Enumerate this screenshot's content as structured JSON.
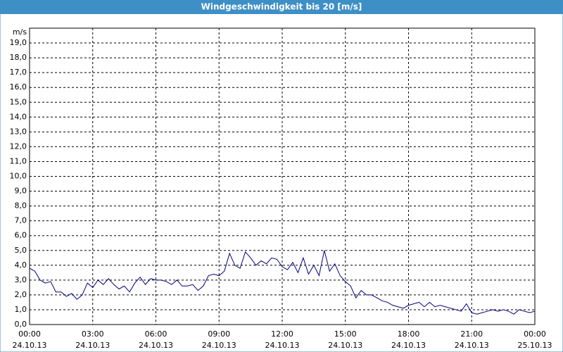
{
  "chart_data": {
    "type": "line",
    "title": "Windgeschwindigkeit bis 20 [m/s]",
    "y_label": "m/s",
    "xlim": [
      0,
      24
    ],
    "xticks": [
      {
        "value": 0,
        "label": "00:00",
        "sublabel": "24.10.13"
      },
      {
        "value": 3,
        "label": "03:00",
        "sublabel": "24.10.13"
      },
      {
        "value": 6,
        "label": "06:00",
        "sublabel": "24.10.13"
      },
      {
        "value": 9,
        "label": "09:00",
        "sublabel": "24.10.13"
      },
      {
        "value": 12,
        "label": "12:00",
        "sublabel": "24.10.13"
      },
      {
        "value": 15,
        "label": "15:00",
        "sublabel": "24.10.13"
      },
      {
        "value": 18,
        "label": "18:00",
        "sublabel": "24.10.13"
      },
      {
        "value": 21,
        "label": "21:00",
        "sublabel": "24.10.13"
      },
      {
        "value": 24,
        "label": "00:00",
        "sublabel": "25.10.13"
      }
    ],
    "ylim": [
      0,
      20
    ],
    "yticks": [
      {
        "value": 0,
        "label": "0,0"
      },
      {
        "value": 1,
        "label": "1,0"
      },
      {
        "value": 2,
        "label": "2,0"
      },
      {
        "value": 3,
        "label": "3,0"
      },
      {
        "value": 4,
        "label": "4,0"
      },
      {
        "value": 5,
        "label": "5,0"
      },
      {
        "value": 6,
        "label": "6,0"
      },
      {
        "value": 7,
        "label": "7,0"
      },
      {
        "value": 8,
        "label": "8,0"
      },
      {
        "value": 9,
        "label": "9,0"
      },
      {
        "value": 10,
        "label": "10,0"
      },
      {
        "value": 11,
        "label": "11,0"
      },
      {
        "value": 12,
        "label": "12,0"
      },
      {
        "value": 13,
        "label": "13,0"
      },
      {
        "value": 14,
        "label": "14,0"
      },
      {
        "value": 15,
        "label": "15,0"
      },
      {
        "value": 16,
        "label": "16,0"
      },
      {
        "value": 17,
        "label": "17,0"
      },
      {
        "value": 18,
        "label": "18,0"
      },
      {
        "value": 19,
        "label": "19,0"
      }
    ],
    "grid": true,
    "x": [
      0,
      0.25,
      0.5,
      0.75,
      1,
      1.25,
      1.5,
      1.75,
      2,
      2.25,
      2.5,
      2.75,
      3,
      3.25,
      3.5,
      3.75,
      4,
      4.25,
      4.5,
      4.75,
      5,
      5.25,
      5.5,
      5.75,
      6,
      6.25,
      6.5,
      6.75,
      7,
      7.25,
      7.5,
      7.75,
      8,
      8.25,
      8.5,
      8.75,
      9,
      9.25,
      9.5,
      9.75,
      10,
      10.25,
      10.5,
      10.75,
      11,
      11.25,
      11.5,
      11.75,
      12,
      12.25,
      12.5,
      12.75,
      13,
      13.25,
      13.5,
      13.75,
      14,
      14.25,
      14.5,
      14.75,
      15,
      15.25,
      15.5,
      15.75,
      16,
      16.25,
      16.5,
      16.75,
      17,
      17.25,
      17.5,
      17.75,
      18,
      18.25,
      18.5,
      18.75,
      19,
      19.25,
      19.5,
      19.75,
      20,
      20.25,
      20.5,
      20.75,
      21,
      21.25,
      21.5,
      21.75,
      22,
      22.25,
      22.5,
      22.75,
      23,
      23.25,
      23.5,
      23.75,
      24
    ],
    "series": [
      {
        "color": "#000080",
        "values": [
          3.8,
          3.6,
          3.0,
          2.8,
          2.9,
          2.2,
          2.2,
          1.9,
          2.1,
          1.7,
          2.0,
          2.8,
          2.5,
          3.0,
          2.7,
          3.1,
          2.7,
          2.4,
          2.6,
          2.2,
          2.8,
          3.2,
          2.7,
          3.1,
          3.0,
          3.0,
          2.9,
          2.7,
          3.0,
          2.6,
          2.6,
          2.7,
          2.3,
          2.6,
          3.3,
          3.4,
          3.3,
          3.6,
          4.8,
          4.0,
          3.8,
          4.9,
          4.5,
          4.0,
          4.3,
          4.1,
          4.5,
          4.4,
          3.9,
          3.7,
          4.2,
          3.5,
          4.5,
          3.4,
          4.0,
          3.3,
          5.0,
          3.6,
          4.1,
          3.3,
          2.9,
          2.6,
          1.8,
          2.3,
          2.0,
          2.0,
          1.8,
          1.6,
          1.5,
          1.3,
          1.2,
          1.1,
          1.3,
          1.4,
          1.5,
          1.2,
          1.5,
          1.2,
          1.3,
          1.2,
          1.1,
          1.0,
          0.9,
          1.4,
          0.8,
          0.7,
          0.8,
          0.9,
          1.0,
          0.9,
          1.0,
          0.9,
          0.7,
          1.0,
          0.9,
          0.8,
          0.9
        ]
      }
    ]
  }
}
